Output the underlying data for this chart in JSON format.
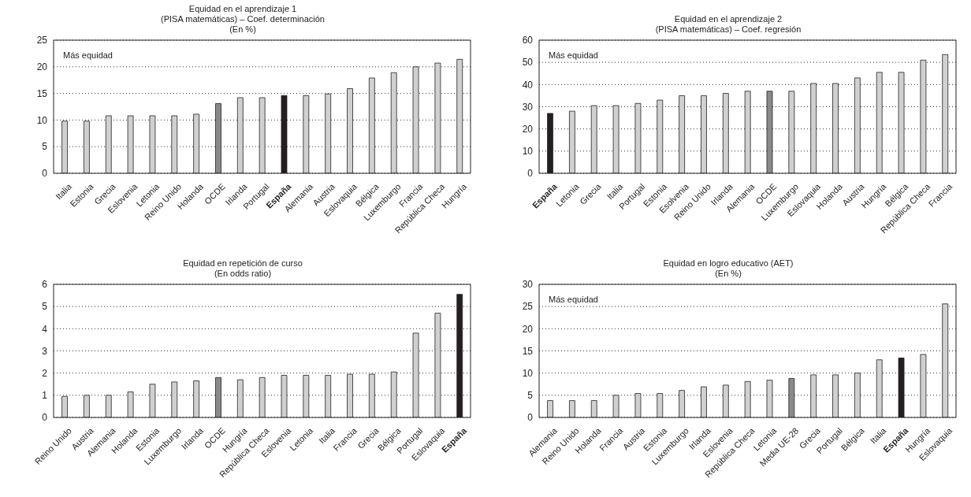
{
  "chart_data": [
    {
      "type": "bar",
      "title": "Equidad en el aprendizaje 1",
      "subtitle": "(PISA matemáticas) – Coef. determinación\n(En %)",
      "categories": [
        "Italia",
        "Estonia",
        "Grecia",
        "Eslovenia",
        "Letonia",
        "Reino Unido",
        "Holanda",
        "OCDE",
        "Irlanda",
        "Portugal",
        "España",
        "Alemania",
        "Austria",
        "Eslovaquia",
        "Bélgica",
        "Luxemburgo",
        "Francia",
        "República Checa",
        "Hungría"
      ],
      "values": [
        9.8,
        9.8,
        10.8,
        10.8,
        10.8,
        10.8,
        11.1,
        13.1,
        14.2,
        14.2,
        14.6,
        14.6,
        14.9,
        15.9,
        17.9,
        18.9,
        20.0,
        20.7,
        21.4
      ],
      "colors": [
        "#d0d0d0",
        "#d0d0d0",
        "#d0d0d0",
        "#d0d0d0",
        "#d0d0d0",
        "#d0d0d0",
        "#d0d0d0",
        "#8a8a8a",
        "#d0d0d0",
        "#d0d0d0",
        "#231f20",
        "#d0d0d0",
        "#d0d0d0",
        "#d0d0d0",
        "#d0d0d0",
        "#d0d0d0",
        "#d0d0d0",
        "#d0d0d0",
        "#d0d0d0"
      ],
      "ylim": [
        0,
        25
      ],
      "yticks": [
        0,
        5,
        10,
        15,
        20,
        25
      ],
      "grid": "y",
      "annotations": [
        "Más equidad"
      ]
    },
    {
      "type": "bar",
      "title": "Equidad en el aprendizaje 2",
      "subtitle": "(PISA matemáticas) – Coef. regresión",
      "categories": [
        "España",
        "Letonia",
        "Grecia",
        "Italia",
        "Portugal",
        "Estonia",
        "Esolvenia",
        "Reino Unido",
        "Irlanda",
        "Alemania",
        "OCDE",
        "Luxemburgo",
        "Eslovaquia",
        "Holanda",
        "Austria",
        "Hungría",
        "Bélgica",
        "República Checa",
        "Francia"
      ],
      "values": [
        27,
        28,
        30.5,
        30.5,
        31.5,
        33,
        35,
        35,
        36,
        37,
        37,
        37,
        40.5,
        40.5,
        43,
        45.5,
        45.5,
        51,
        53.5
      ],
      "colors": [
        "#231f20",
        "#d0d0d0",
        "#d0d0d0",
        "#d0d0d0",
        "#d0d0d0",
        "#d0d0d0",
        "#d0d0d0",
        "#d0d0d0",
        "#d0d0d0",
        "#d0d0d0",
        "#8a8a8a",
        "#d0d0d0",
        "#d0d0d0",
        "#d0d0d0",
        "#d0d0d0",
        "#d0d0d0",
        "#d0d0d0",
        "#d0d0d0",
        "#d0d0d0"
      ],
      "ylim": [
        0,
        60
      ],
      "yticks": [
        0,
        10,
        20,
        30,
        40,
        50,
        60
      ],
      "grid": "y",
      "annotations": [
        "Más equidad"
      ]
    },
    {
      "type": "bar",
      "title": "Equidad en repetición de curso",
      "subtitle": "(En odds ratio)",
      "categories": [
        "Reino Unido",
        "Austria",
        "Alemania",
        "Holanda",
        "Estonia",
        "Luxemburgo",
        "Irlanda",
        "OCDE",
        "Hungría",
        "República Checa",
        "Eslovenia",
        "Letonia",
        "Italia",
        "Francia",
        "Grecia",
        "Bélgica",
        "Portugal",
        "Eslovaquia",
        "España"
      ],
      "values": [
        0.95,
        1.0,
        1.0,
        1.15,
        1.5,
        1.6,
        1.65,
        1.8,
        1.7,
        1.8,
        1.9,
        1.9,
        1.9,
        1.95,
        1.95,
        2.05,
        3.8,
        4.7,
        5.55
      ],
      "colors": [
        "#d0d0d0",
        "#d0d0d0",
        "#d0d0d0",
        "#d0d0d0",
        "#d0d0d0",
        "#d0d0d0",
        "#d0d0d0",
        "#8a8a8a",
        "#d0d0d0",
        "#d0d0d0",
        "#d0d0d0",
        "#d0d0d0",
        "#d0d0d0",
        "#d0d0d0",
        "#d0d0d0",
        "#d0d0d0",
        "#d0d0d0",
        "#d0d0d0",
        "#231f20"
      ],
      "ylim": [
        0,
        6
      ],
      "yticks": [
        0,
        1,
        2,
        3,
        4,
        5,
        6
      ],
      "grid": "y"
    },
    {
      "type": "bar",
      "title": "Equidad en logro educativo (AET)",
      "subtitle": "(En %)",
      "categories": [
        "Alemania",
        "Reino Unido",
        "Holanda",
        "Francia",
        "Austria",
        "Estonia",
        "Luxemburgo",
        "Irlanda",
        "Eslovenia",
        "República Checa",
        "Letonia",
        "Media UE-28",
        "Grecia",
        "Portugal",
        "Bélgica",
        "Italia",
        "España",
        "Hungría",
        "Eslovaquia"
      ],
      "values": [
        3.8,
        3.8,
        3.8,
        5.0,
        5.4,
        5.4,
        6.1,
        6.9,
        7.3,
        8.1,
        8.4,
        8.8,
        9.6,
        9.6,
        10.0,
        13.0,
        13.4,
        14.2,
        25.6
      ],
      "colors": [
        "#d0d0d0",
        "#d0d0d0",
        "#d0d0d0",
        "#d0d0d0",
        "#d0d0d0",
        "#d0d0d0",
        "#d0d0d0",
        "#d0d0d0",
        "#d0d0d0",
        "#d0d0d0",
        "#d0d0d0",
        "#8a8a8a",
        "#d0d0d0",
        "#d0d0d0",
        "#d0d0d0",
        "#d0d0d0",
        "#231f20",
        "#d0d0d0",
        "#d0d0d0"
      ],
      "ylim": [
        0,
        30
      ],
      "yticks": [
        0,
        5,
        10,
        15,
        20,
        25,
        30
      ],
      "grid": "y",
      "annotations": [
        "Más equidad"
      ]
    }
  ]
}
